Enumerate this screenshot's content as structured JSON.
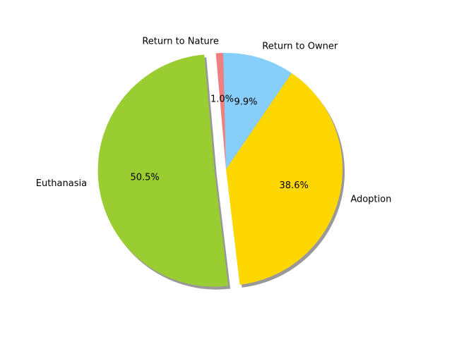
{
  "chart_data": {
    "type": "pie",
    "title": "",
    "slices": [
      {
        "label": "Euthanasia",
        "value": 50.5,
        "pct_label": "50.5%",
        "color": "#9acd32",
        "exploded": true
      },
      {
        "label": "Adoption",
        "value": 38.6,
        "pct_label": "38.6%",
        "color": "#ffd700",
        "exploded": false
      },
      {
        "label": "Return to Owner",
        "value": 9.9,
        "pct_label": "9.9%",
        "color": "#87cefa",
        "exploded": false
      },
      {
        "label": "Return to Nature",
        "value": 1.0,
        "pct_label": "1.0%",
        "color": "#f08080",
        "exploded": false
      }
    ],
    "start_angle_deg": 95,
    "counterclockwise": true,
    "shadow": true,
    "legend": "none"
  }
}
